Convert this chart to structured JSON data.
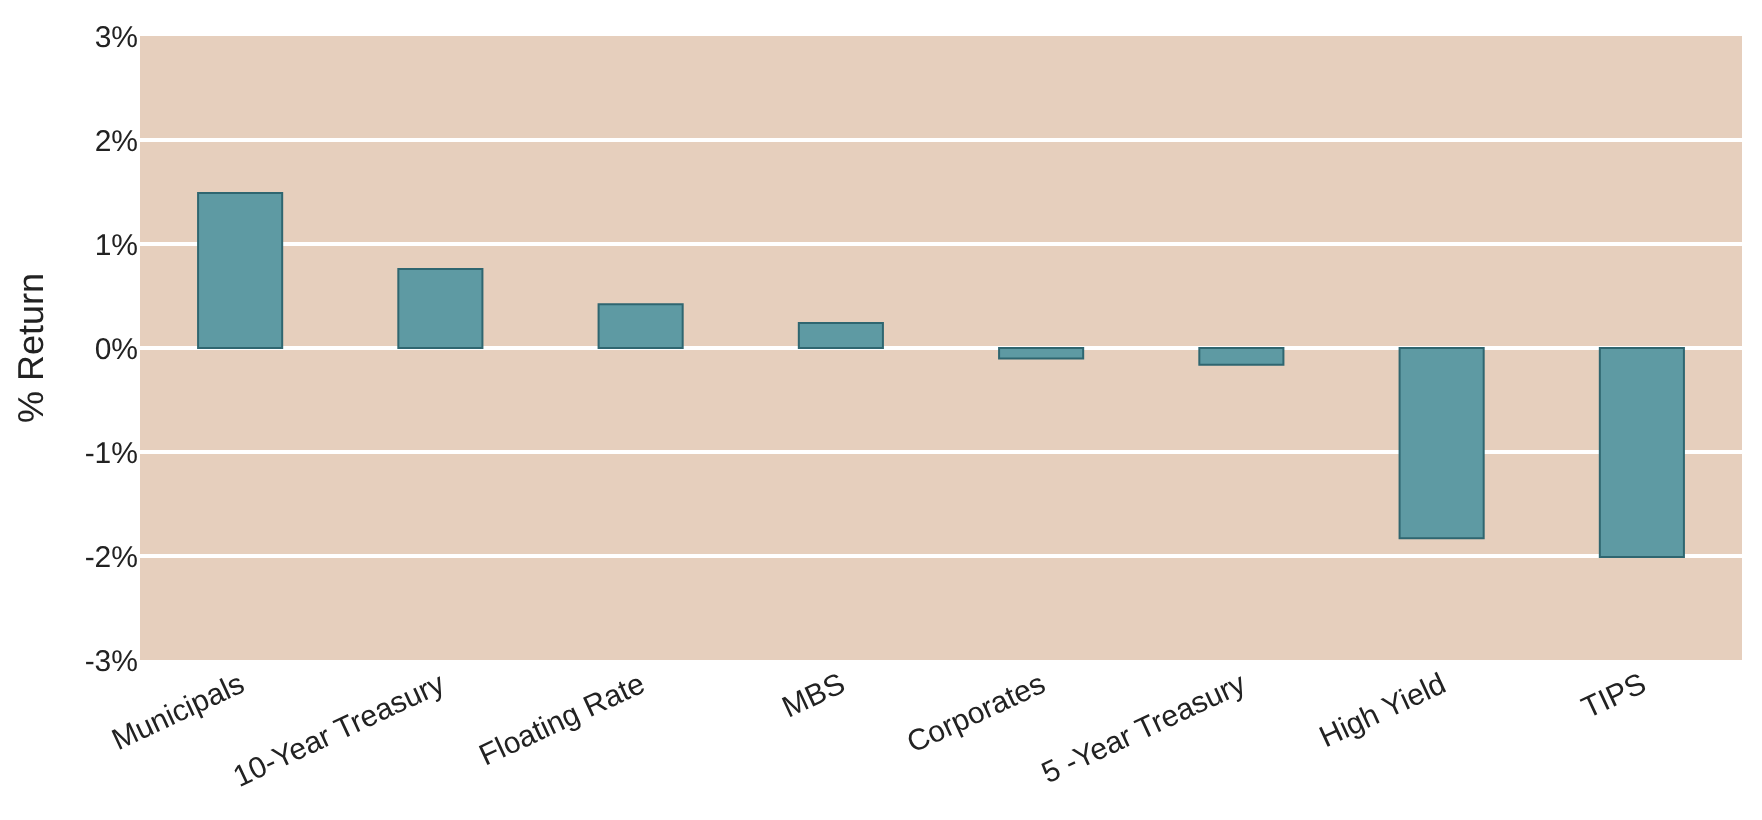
{
  "chart_data": {
    "type": "bar",
    "ylabel": "% Return",
    "categories": [
      "Municipals",
      "10-Year Treasury",
      "Floating Rate",
      "MBS",
      "Corporates",
      "5 -Year Treasury",
      "High Yield",
      "TIPS"
    ],
    "values": [
      1.49,
      0.76,
      0.42,
      0.24,
      -0.1,
      -0.16,
      -1.83,
      -2.01
    ],
    "color": "#5e9aa3",
    "ylim": [
      -3,
      3
    ],
    "yticks": [
      {
        "value": -3,
        "label": "-3%"
      },
      {
        "value": -2,
        "label": "-2%"
      },
      {
        "value": -1,
        "label": "-1%"
      },
      {
        "value": 0,
        "label": "0%"
      },
      {
        "value": 1,
        "label": "1%"
      },
      {
        "value": 2,
        "label": "2%"
      },
      {
        "value": 3,
        "label": "3%"
      }
    ],
    "grid": "y"
  }
}
